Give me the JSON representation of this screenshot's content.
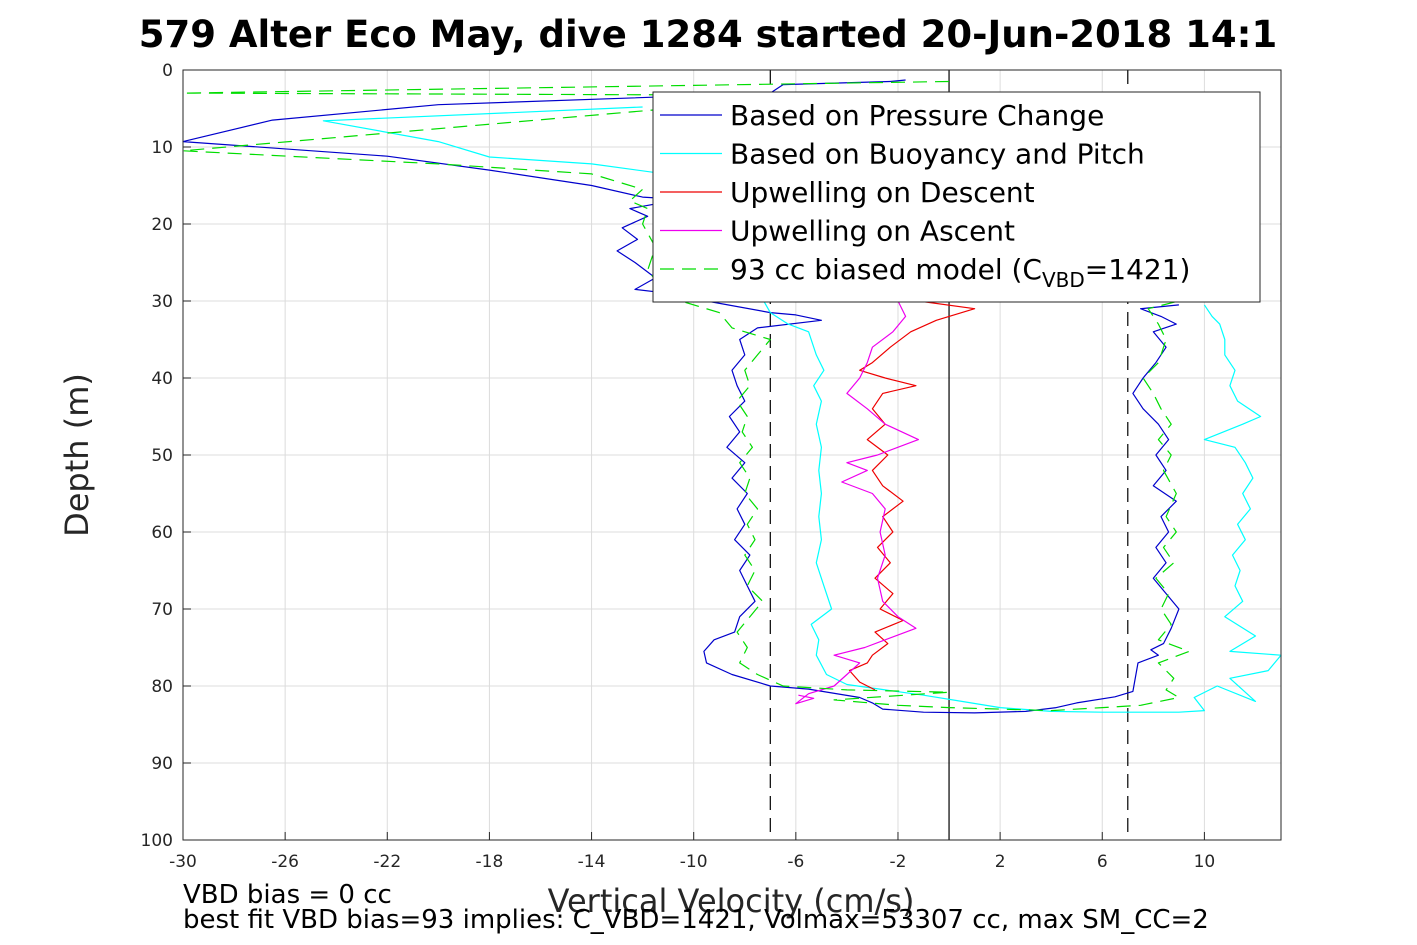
{
  "chart_data": {
    "type": "line",
    "title": "579 Alter Eco May, dive 1284 started 20-Jun-2018 14:1",
    "xlabel": "Vertical Velocity (cm/s)",
    "ylabel": "Depth (m)",
    "xlim": [
      -30,
      13
    ],
    "ylim": [
      0,
      100
    ],
    "y_reversed": true,
    "grid": true,
    "legend_position": "top-right",
    "x_ticks": [
      -30,
      -26,
      -22,
      -18,
      -14,
      -10,
      -6,
      -2,
      2,
      6,
      10
    ],
    "y_ticks": [
      0,
      10,
      20,
      30,
      40,
      50,
      60,
      70,
      80,
      90,
      100
    ],
    "reference_lines": [
      {
        "x": 0,
        "style": "solid",
        "color": "#000000"
      },
      {
        "x": -7,
        "style": "dashed",
        "color": "#000000"
      },
      {
        "x": 7,
        "style": "dashed",
        "color": "#000000"
      }
    ],
    "series": [
      {
        "name": "Based on Pressure Change",
        "color": "#0000cc",
        "style": "solid",
        "points": [
          [
            -1.7,
            1.3
          ],
          [
            -2.3,
            1.5
          ],
          [
            -6.5,
            1.9
          ],
          [
            -7.0,
            3.0
          ],
          [
            -20,
            4.5
          ],
          [
            -26.5,
            6.5
          ],
          [
            -30,
            9.3
          ],
          [
            -22,
            11.2
          ],
          [
            -18,
            13
          ],
          [
            -14,
            15
          ],
          [
            -12,
            16.5
          ],
          [
            -10.5,
            16.8
          ],
          [
            -12.5,
            18
          ],
          [
            -11.8,
            19
          ],
          [
            -12.8,
            20.5
          ],
          [
            -12.2,
            22
          ],
          [
            -13.0,
            23.5
          ],
          [
            -12.3,
            25
          ],
          [
            -11.5,
            27
          ],
          [
            -12.3,
            28.5
          ],
          [
            -11,
            29
          ],
          [
            -9.5,
            30
          ],
          [
            -7.0,
            31.5
          ],
          [
            -6.0,
            31.8
          ],
          [
            -5.0,
            32.5
          ],
          [
            -7.5,
            33.5
          ],
          [
            -8.2,
            35
          ],
          [
            -8.0,
            37
          ],
          [
            -8.5,
            39
          ],
          [
            -8.3,
            41
          ],
          [
            -8.0,
            43
          ],
          [
            -8.6,
            45
          ],
          [
            -8.2,
            47
          ],
          [
            -8.7,
            49
          ],
          [
            -8.0,
            51
          ],
          [
            -8.5,
            53
          ],
          [
            -7.9,
            55
          ],
          [
            -8.3,
            57
          ],
          [
            -8.0,
            59
          ],
          [
            -8.4,
            61
          ],
          [
            -7.8,
            63
          ],
          [
            -8.2,
            65
          ],
          [
            -7.9,
            67
          ],
          [
            -7.6,
            69
          ],
          [
            -8.2,
            71
          ],
          [
            -8.4,
            73
          ],
          [
            -9.2,
            74
          ],
          [
            -9.6,
            75.5
          ],
          [
            -9.5,
            77
          ],
          [
            -8.5,
            78.5
          ],
          [
            -7.0,
            80.0
          ],
          [
            -5.5,
            80.4
          ],
          [
            -3.5,
            81.5
          ],
          [
            -3.0,
            82.2
          ],
          [
            -2.6,
            83.0
          ],
          [
            -1.0,
            83.4
          ],
          [
            1.0,
            83.5
          ],
          [
            3.0,
            83.3
          ],
          [
            4.2,
            82.8
          ],
          [
            5.0,
            82.2
          ],
          [
            6.5,
            81.4
          ],
          [
            7.2,
            80.7
          ],
          [
            7.4,
            77
          ],
          [
            8.2,
            76
          ],
          [
            7.9,
            75.3
          ],
          [
            8.4,
            74.5
          ],
          [
            8.7,
            72.5
          ],
          [
            9.0,
            70
          ],
          [
            8.5,
            68
          ],
          [
            8.0,
            66
          ],
          [
            8.5,
            64
          ],
          [
            8.1,
            62
          ],
          [
            8.6,
            60
          ],
          [
            8.3,
            58
          ],
          [
            8.9,
            56
          ],
          [
            8.0,
            54
          ],
          [
            8.5,
            52
          ],
          [
            8.1,
            50
          ],
          [
            8.6,
            48
          ],
          [
            8.2,
            46
          ],
          [
            7.6,
            44
          ],
          [
            7.2,
            42
          ],
          [
            7.6,
            40
          ],
          [
            8.1,
            38
          ],
          [
            8.5,
            36
          ],
          [
            8.0,
            34
          ],
          [
            8.9,
            33
          ],
          [
            8.3,
            32
          ],
          [
            7.5,
            31
          ],
          [
            9.0,
            30.5
          ]
        ]
      },
      {
        "name": "Based on Buoyancy and Pitch",
        "color": "#00ffff",
        "style": "solid",
        "points": [
          [
            -12,
            4.8
          ],
          [
            -24.5,
            6.6
          ],
          [
            -20,
            9.3
          ],
          [
            -18,
            11.3
          ],
          [
            -14,
            12.2
          ],
          [
            -10,
            14
          ],
          [
            -7,
            31.5
          ],
          [
            -6.3,
            33
          ],
          [
            -5.5,
            34
          ],
          [
            -5.2,
            37
          ],
          [
            -4.9,
            39
          ],
          [
            -5.3,
            41
          ],
          [
            -5.0,
            43
          ],
          [
            -5.2,
            46
          ],
          [
            -5.0,
            49
          ],
          [
            -5.1,
            52
          ],
          [
            -5.0,
            55
          ],
          [
            -5.1,
            58
          ],
          [
            -5.0,
            61
          ],
          [
            -5.2,
            64
          ],
          [
            -4.9,
            67
          ],
          [
            -4.6,
            70
          ],
          [
            -5.4,
            72
          ],
          [
            -5.1,
            74
          ],
          [
            -5.2,
            76
          ],
          [
            -4.8,
            78.5
          ],
          [
            -4.0,
            79.8
          ],
          [
            -2.5,
            80.5
          ],
          [
            -1.0,
            81.2
          ],
          [
            0.5,
            82.0
          ],
          [
            2.0,
            82.8
          ],
          [
            4.0,
            83.3
          ],
          [
            6.0,
            83.4
          ],
          [
            9.0,
            83.4
          ],
          [
            10.0,
            83.2
          ],
          [
            9.6,
            81.5
          ],
          [
            10.5,
            80
          ],
          [
            12.0,
            82
          ],
          [
            11.0,
            79
          ],
          [
            12.5,
            78
          ],
          [
            13,
            76
          ],
          [
            11,
            75.5
          ],
          [
            12,
            73.5
          ],
          [
            10.8,
            71
          ],
          [
            11.5,
            69
          ],
          [
            11.2,
            67
          ],
          [
            11.4,
            65
          ],
          [
            11.1,
            63
          ],
          [
            11.6,
            61
          ],
          [
            11.3,
            59
          ],
          [
            11.8,
            57
          ],
          [
            11.5,
            55
          ],
          [
            11.9,
            53
          ],
          [
            11.6,
            51
          ],
          [
            11.2,
            49
          ],
          [
            10.0,
            48
          ],
          [
            11.5,
            46
          ],
          [
            12.2,
            45
          ],
          [
            11.3,
            43
          ],
          [
            11.0,
            41
          ],
          [
            11.2,
            39
          ],
          [
            10.8,
            37
          ],
          [
            10.8,
            35
          ],
          [
            10.6,
            33
          ],
          [
            10.3,
            32
          ],
          [
            10.0,
            30.5
          ]
        ]
      },
      {
        "name": "Upwelling on Descent",
        "color": "#ee0000",
        "style": "solid",
        "points": [
          [
            -1.2,
            30
          ],
          [
            1.0,
            31
          ],
          [
            -0.5,
            32.5
          ],
          [
            -1.5,
            34
          ],
          [
            -2.3,
            36
          ],
          [
            -3.0,
            38
          ],
          [
            -3.5,
            39
          ],
          [
            -2.5,
            40
          ],
          [
            -1.3,
            41
          ],
          [
            -2.6,
            42
          ],
          [
            -3.0,
            44
          ],
          [
            -2.5,
            46
          ],
          [
            -3.2,
            48
          ],
          [
            -2.4,
            50
          ],
          [
            -3.0,
            52
          ],
          [
            -2.6,
            54
          ],
          [
            -1.8,
            56
          ],
          [
            -2.6,
            58
          ],
          [
            -2.2,
            60
          ],
          [
            -2.8,
            62
          ],
          [
            -2.3,
            64
          ],
          [
            -2.9,
            66
          ],
          [
            -2.2,
            68
          ],
          [
            -2.7,
            70
          ],
          [
            -1.8,
            71.5
          ],
          [
            -2.9,
            73
          ],
          [
            -2.4,
            74.5
          ],
          [
            -3.0,
            76
          ],
          [
            -3.2,
            77
          ],
          [
            -3.9,
            78
          ],
          [
            -3.5,
            79.5
          ],
          [
            -2.9,
            80.5
          ]
        ]
      },
      {
        "name": "Upwelling on Ascent",
        "color": "#ee00ee",
        "style": "solid",
        "points": [
          [
            -2.0,
            30
          ],
          [
            -1.7,
            32
          ],
          [
            -2.2,
            34
          ],
          [
            -3.0,
            36
          ],
          [
            -3.2,
            38
          ],
          [
            -3.5,
            40
          ],
          [
            -4.0,
            42
          ],
          [
            -3.2,
            44
          ],
          [
            -2.5,
            46
          ],
          [
            -1.2,
            48
          ],
          [
            -2.8,
            50
          ],
          [
            -4.0,
            51
          ],
          [
            -3.2,
            52
          ],
          [
            -4.2,
            53.5
          ],
          [
            -3.0,
            55
          ],
          [
            -2.5,
            57
          ],
          [
            -2.7,
            60
          ],
          [
            -2.5,
            63
          ],
          [
            -2.8,
            66
          ],
          [
            -2.6,
            69
          ],
          [
            -2.0,
            71
          ],
          [
            -1.3,
            72.5
          ],
          [
            -2.5,
            74
          ],
          [
            -3.3,
            75
          ],
          [
            -4.5,
            76
          ],
          [
            -3.5,
            77
          ],
          [
            -4.0,
            78.5
          ],
          [
            -4.5,
            80
          ],
          [
            -5.5,
            81
          ],
          [
            -6.0,
            82.3
          ],
          [
            -5.3,
            81.6
          ],
          [
            -5.9,
            81.2
          ]
        ]
      },
      {
        "name": "93 cc biased model (C_VBD=1421)",
        "color": "#00dd00",
        "style": "dashed",
        "points": [
          [
            0,
            1.5
          ],
          [
            -30,
            3.0
          ],
          [
            -5,
            3.3
          ],
          [
            -30,
            10.5
          ],
          [
            -20,
            12.2
          ],
          [
            -14,
            13.5
          ],
          [
            -12,
            15.5
          ],
          [
            -12.5,
            17
          ],
          [
            -11.8,
            18
          ],
          [
            -12.0,
            20
          ],
          [
            -11.5,
            23
          ],
          [
            -11.8,
            26
          ],
          [
            -11.2,
            28.5
          ],
          [
            -10.5,
            30
          ],
          [
            -9.0,
            31.5
          ],
          [
            -8.5,
            33.5
          ],
          [
            -7.0,
            35
          ],
          [
            -7.5,
            37
          ],
          [
            -8.0,
            39
          ],
          [
            -7.8,
            41
          ],
          [
            -8.3,
            43
          ],
          [
            -7.9,
            45
          ],
          [
            -8.1,
            47
          ],
          [
            -7.7,
            49
          ],
          [
            -8.2,
            51
          ],
          [
            -7.8,
            53
          ],
          [
            -8.0,
            55
          ],
          [
            -7.5,
            57
          ],
          [
            -7.9,
            59
          ],
          [
            -7.6,
            61
          ],
          [
            -8.0,
            63
          ],
          [
            -7.6,
            65
          ],
          [
            -7.9,
            67
          ],
          [
            -7.3,
            69
          ],
          [
            -7.8,
            71
          ],
          [
            -8.3,
            73
          ],
          [
            -7.9,
            75
          ],
          [
            -8.2,
            77
          ],
          [
            -7.5,
            78.5
          ],
          [
            -6.5,
            80
          ],
          [
            -4.0,
            80.5
          ],
          [
            0,
            80.8
          ],
          [
            -4.5,
            81.8
          ],
          [
            -2.0,
            82.5
          ],
          [
            0,
            82.8
          ],
          [
            4.0,
            83.2
          ],
          [
            6.0,
            82.8
          ],
          [
            7.5,
            82.5
          ],
          [
            9.0,
            81.5
          ],
          [
            8.5,
            80.5
          ],
          [
            8.8,
            79
          ],
          [
            8.2,
            77
          ],
          [
            9.4,
            75.5
          ],
          [
            8.2,
            74
          ],
          [
            8.7,
            72
          ],
          [
            8.3,
            70
          ],
          [
            8.6,
            68
          ],
          [
            8.1,
            66
          ],
          [
            8.8,
            64
          ],
          [
            8.4,
            62
          ],
          [
            8.9,
            60
          ],
          [
            8.5,
            58
          ],
          [
            8.9,
            55
          ],
          [
            8.4,
            52
          ],
          [
            8.7,
            50
          ],
          [
            8.2,
            48
          ],
          [
            8.7,
            46
          ],
          [
            8.3,
            44
          ],
          [
            8.0,
            42
          ],
          [
            7.6,
            40
          ],
          [
            8.2,
            38
          ],
          [
            8.5,
            35
          ],
          [
            8.2,
            33
          ],
          [
            7.8,
            31
          ],
          [
            9.0,
            30
          ]
        ]
      }
    ],
    "legend": {
      "entries": [
        {
          "label": "Based on Pressure Change",
          "color": "#0000cc",
          "style": "solid"
        },
        {
          "label": "Based on Buoyancy and Pitch",
          "color": "#00ffff",
          "style": "solid"
        },
        {
          "label": "Upwelling on Descent",
          "color": "#ee0000",
          "style": "solid"
        },
        {
          "label": "Upwelling on Ascent",
          "color": "#ee00ee",
          "style": "solid"
        },
        {
          "label": "93 cc biased model (C",
          "label_sub": "VBD",
          "label_tail": "=1421)",
          "color": "#00dd00",
          "style": "dashed"
        }
      ]
    },
    "annotations": [
      "VBD bias = 0 cc",
      "best fit VBD bias=93 implies: C_VBD=1421, Volmax=53307 cc, max SM_CC=2"
    ]
  }
}
